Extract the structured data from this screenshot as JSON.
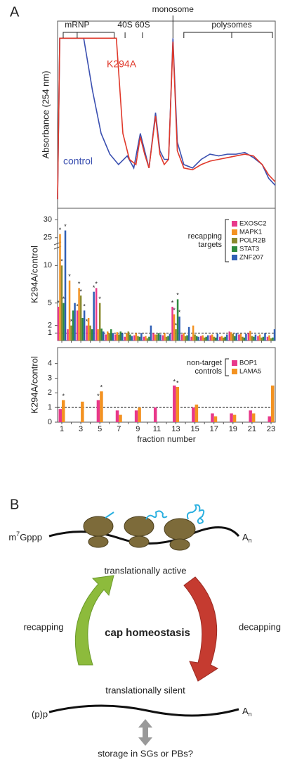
{
  "panel_labels": [
    "A",
    "B"
  ],
  "chart_data": [
    {
      "type": "line",
      "ylabel": "Absorbance (254 nm)",
      "xlim": [
        0,
        100
      ],
      "ylim": [
        0,
        100
      ],
      "annotations": [
        {
          "text": "mRNP",
          "x": 9
        },
        {
          "text": "40S",
          "x": 31
        },
        {
          "text": "60S",
          "x": 39
        },
        {
          "text": "monosome",
          "x": 53
        },
        {
          "text": "polysomes",
          "x": 80
        }
      ],
      "series": [
        {
          "name": "control",
          "color": "#3a4fb0",
          "x": [
            0,
            1,
            12,
            16,
            20,
            24,
            28,
            32,
            35,
            38,
            40,
            42,
            45,
            47,
            49,
            51,
            53,
            55,
            58,
            62,
            66,
            70,
            74,
            78,
            82,
            86,
            90,
            94,
            97,
            100
          ],
          "values": [
            2,
            95,
            95,
            65,
            40,
            28,
            22,
            27,
            20,
            40,
            30,
            20,
            52,
            30,
            25,
            25,
            95,
            35,
            22,
            20,
            25,
            28,
            27,
            28,
            28,
            29,
            26,
            22,
            14,
            10
          ]
        },
        {
          "name": "K294A",
          "color": "#e0392b",
          "x": [
            0,
            1,
            25,
            27,
            30,
            33,
            36,
            38,
            40,
            42,
            45,
            47,
            49,
            51,
            53,
            55,
            58,
            62,
            66,
            70,
            74,
            78,
            82,
            86,
            90,
            94,
            97,
            100
          ],
          "values": [
            2,
            95,
            95,
            95,
            40,
            25,
            22,
            38,
            28,
            20,
            50,
            28,
            22,
            25,
            93,
            30,
            20,
            19,
            22,
            24,
            25,
            26,
            27,
            28,
            27,
            22,
            16,
            12
          ]
        }
      ]
    },
    {
      "type": "bar",
      "ylabel": "K294A/control",
      "ylim": [
        0,
        32
      ],
      "axis_break": [
        12,
        23
      ],
      "yticks": [
        1,
        2,
        5,
        10,
        25,
        30
      ],
      "ref_line": 1,
      "legend_title": [
        "recapping",
        "targets"
      ],
      "marker": "*",
      "series": [
        {
          "name": "EXOSC2",
          "color": "#e8388a",
          "values": [
            4.5,
            1.5,
            4,
            2,
            7,
            0.8,
            0.8,
            0.5,
            0.7,
            0.5,
            1.0,
            0.7,
            4.5,
            0.8,
            0.5,
            0.6,
            0.7,
            0.5,
            1.2,
            0.8,
            1.0,
            0.6,
            0.5
          ],
          "significant": [
            0,
            2,
            3,
            4,
            12
          ]
        },
        {
          "name": "MAPK1",
          "color": "#f39221",
          "values": [
            26,
            8,
            7,
            3,
            1.5,
            1.2,
            1.1,
            1.0,
            1.0,
            0.6,
            0.8,
            1.0,
            3.5,
            1.0,
            2.0,
            0.7,
            0.8,
            0.6,
            1.1,
            0.9,
            1.3,
            0.8,
            0.7
          ],
          "significant": [
            0,
            1,
            2,
            12
          ]
        },
        {
          "name": "POLR2B",
          "color": "#8b8a2e",
          "values": [
            10,
            2,
            6,
            2,
            5,
            1.0,
            0.8,
            1.2,
            0.6,
            0.3,
            0.8,
            0.5,
            1.5,
            0.6,
            0.8,
            0.4,
            0.5,
            0.4,
            0.9,
            0.5,
            0.6,
            0.4,
            0.3
          ],
          "significant": [
            0,
            1,
            2,
            4,
            12
          ]
        },
        {
          "name": "STAT3",
          "color": "#2e8b3e",
          "values": [
            5,
            4,
            3,
            1.5,
            1.6,
            1.5,
            1.2,
            0.8,
            0.5,
            0.5,
            1.0,
            0.6,
            5.5,
            0.7,
            0.6,
            0.5,
            0.4,
            0.5,
            0.6,
            0.4,
            0.5,
            0.5,
            0.4
          ],
          "significant": [
            0,
            12
          ]
        },
        {
          "name": "ZNF207",
          "color": "#2f5fb5",
          "values": [
            27,
            5,
            4,
            6.5,
            1.2,
            1.0,
            1.0,
            0.6,
            1.0,
            2.0,
            0.8,
            0.9,
            3.2,
            1.8,
            0.5,
            0.7,
            0.9,
            0.8,
            1.0,
            0.9,
            0.8,
            1.0,
            1.5
          ],
          "significant": [
            0,
            2,
            3,
            12
          ]
        }
      ]
    },
    {
      "type": "bar",
      "ylabel": "K294A/control",
      "xlabel": "fraction number",
      "ylim": [
        0,
        4.8
      ],
      "yticks": [
        0,
        1,
        2,
        3,
        4
      ],
      "ref_line": 1,
      "legend_title": [
        "non-target",
        "controls"
      ],
      "marker": "*",
      "categories": [
        "1",
        null,
        "3",
        null,
        "5",
        null,
        "7",
        null,
        "9",
        null,
        "11",
        null,
        "13",
        null,
        "15",
        null,
        "17",
        null,
        "19",
        null,
        "21",
        null,
        "23"
      ],
      "series": [
        {
          "name": "BOP1",
          "color": "#e8388a",
          "values": [
            0.9,
            null,
            null,
            null,
            1.5,
            null,
            0.8,
            null,
            0.8,
            null,
            1.0,
            null,
            2.5,
            null,
            1.0,
            null,
            0.6,
            null,
            0.6,
            null,
            0.8,
            null,
            0.4
          ],
          "significant": [
            4,
            12
          ]
        },
        {
          "name": "LAMA5",
          "color": "#f39221",
          "values": [
            1.5,
            null,
            1.4,
            null,
            2.1,
            null,
            0.5,
            null,
            1.0,
            null,
            null,
            null,
            2.4,
            null,
            1.2,
            null,
            0.4,
            null,
            0.5,
            null,
            0.6,
            null,
            2.5
          ],
          "significant": [
            0,
            4,
            12
          ]
        }
      ]
    }
  ],
  "diagram": {
    "cap": [
      "m",
      "7",
      "Gppp"
    ],
    "tail": [
      "A",
      "n"
    ],
    "active": "translationally active",
    "silent": "translationally silent",
    "center": "cap homeostasis",
    "left": "recapping",
    "right": "decapping",
    "uncapped": "(p)p",
    "storage": "storage in SGs or PBs?"
  }
}
